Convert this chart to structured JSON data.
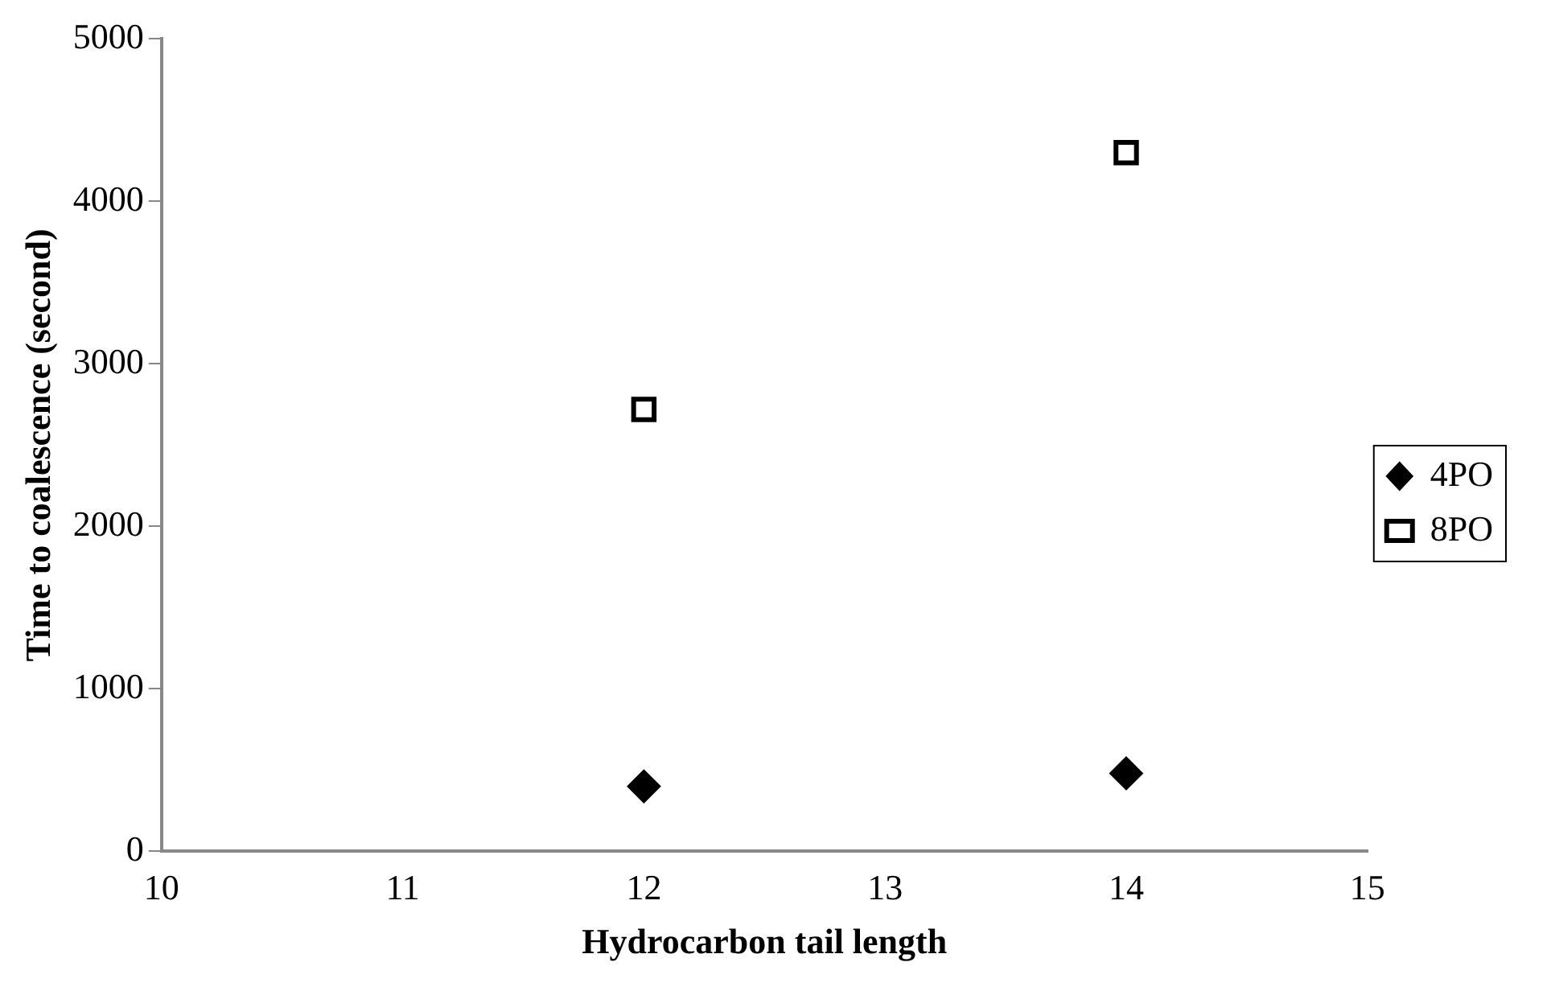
{
  "chart_data": {
    "type": "scatter",
    "xlabel": "Hydrocarbon tail length",
    "ylabel": "Time to coalescence (second)",
    "xlim": [
      10,
      15
    ],
    "xticks": [
      10,
      11,
      12,
      13,
      14,
      15
    ],
    "ylim": [
      0,
      5000
    ],
    "yticks": [
      0,
      1000,
      2000,
      3000,
      4000,
      5000
    ],
    "grid": false,
    "legend": "right",
    "x": [
      12,
      14
    ],
    "series": [
      {
        "name": "4PO",
        "color": "#000000",
        "marker": "diamond",
        "values": [
          400,
          480
        ]
      },
      {
        "name": "8PO",
        "color": "#000000",
        "marker": "square",
        "values": [
          2720,
          4300
        ]
      }
    ]
  }
}
